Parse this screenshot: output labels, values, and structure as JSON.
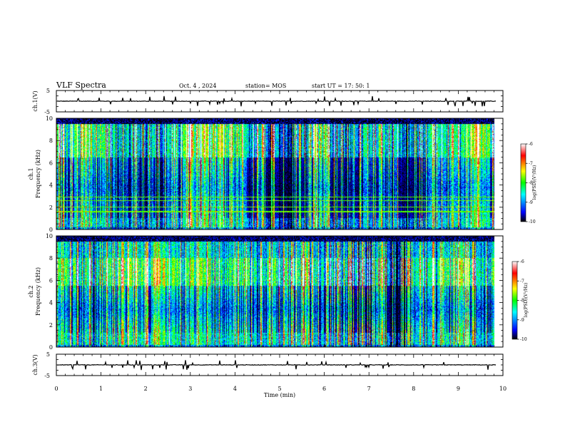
{
  "header": {
    "title": "VLF Spectra",
    "date": "Oct. 4 , 2024",
    "station": "station= MOS",
    "start": "start UT = 17: 50: 1"
  },
  "chart_data": [
    {
      "name": "ch1-waveform",
      "type": "line",
      "ylabel": "ch.1(V)",
      "yticks": [
        "5",
        "-5"
      ],
      "ylim": [
        -5,
        5
      ],
      "xlim": [
        0,
        10
      ],
      "baseline": 0,
      "data_end_min": 9.85
    },
    {
      "name": "ch1-spectrogram",
      "type": "heatmap",
      "ylabel": "ch.1 Frequency (kHz)",
      "ylabel_line1": "ch.1",
      "ylabel_line2": "Frequency (kHz)",
      "yticks": [
        "0",
        "2",
        "4",
        "6",
        "8",
        "10"
      ],
      "ylim": [
        0,
        10
      ],
      "xlim": [
        0,
        10
      ],
      "data_end_min": 9.85,
      "strong_band_khz": [
        6.5,
        9.5
      ],
      "low_band_khz": [
        0.2,
        1.0
      ],
      "horizontal_lines_khz": [
        1.6,
        2.0,
        2.6,
        2.9
      ],
      "colorbar": {
        "label": "log(PSD)(V²/Hz)",
        "ticks": [
          "-6",
          "-7",
          "-8",
          "-9",
          "-10"
        ],
        "range": [
          -10,
          -6
        ]
      }
    },
    {
      "name": "ch2-spectrogram",
      "type": "heatmap",
      "ylabel": "ch.2 Frequency (kHz)",
      "ylabel_line1": "ch.2",
      "ylabel_line2": "Frequency (kHz)",
      "yticks": [
        "0",
        "2",
        "4",
        "6",
        "8",
        "10"
      ],
      "ylim": [
        0,
        10
      ],
      "xlim": [
        0,
        10
      ],
      "data_end_min": 9.85,
      "strong_band_khz": [
        5.5,
        8.0
      ],
      "low_band_khz": [
        0.2,
        1.3
      ],
      "colorbar": {
        "label": "log(PSD)(V²/Hz)",
        "ticks": [
          "-6",
          "-7",
          "-8",
          "-9",
          "-10"
        ],
        "range": [
          -10,
          -6
        ]
      }
    },
    {
      "name": "ch3-waveform",
      "type": "line",
      "ylabel": "ch.3(V)",
      "yticks": [
        "5",
        "-5"
      ],
      "ylim": [
        -5,
        5
      ],
      "xlim": [
        0,
        10
      ],
      "baseline": 0,
      "data_end_min": 9.85
    }
  ],
  "xaxis": {
    "label": "Time (min)",
    "ticks": [
      "0",
      "1",
      "2",
      "3",
      "4",
      "5",
      "6",
      "7",
      "8",
      "9",
      "10"
    ],
    "range": [
      0,
      10
    ]
  },
  "colorscale": [
    "#000000",
    "#0000ff",
    "#00ffff",
    "#00ff00",
    "#ffff00",
    "#ff0000",
    "#ffffff"
  ]
}
